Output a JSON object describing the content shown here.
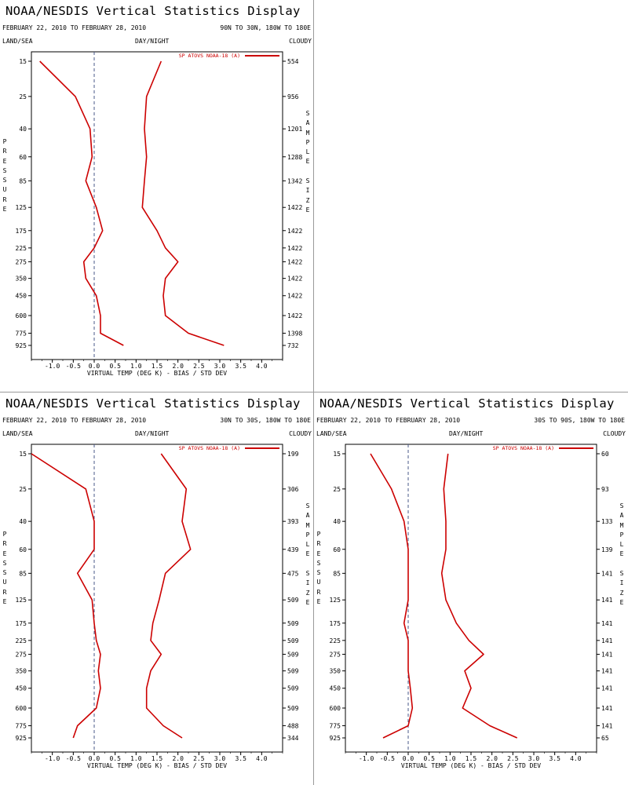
{
  "panels": [
    {
      "title": "NOAA/NESDIS Vertical Statistics Display",
      "dates": "FEBRUARY 22, 2010 TO FEBRUARY 28, 2010",
      "region": "90N TO 30N, 180W TO 180E",
      "land_sea": "LAND/SEA",
      "day_night": "DAY/NIGHT",
      "cloudy": "CLOUDY"
    },
    {
      "title": "NOAA/NESDIS Vertical Statistics Display",
      "dates": "FEBRUARY 22, 2010 TO FEBRUARY 28, 2010",
      "region": "30N TO 30S, 180W TO 180E",
      "land_sea": "LAND/SEA",
      "day_night": "DAY/NIGHT",
      "cloudy": "CLOUDY"
    },
    {
      "title": "NOAA/NESDIS Vertical Statistics Display",
      "dates": "FEBRUARY 22, 2010 TO FEBRUARY 28, 2010",
      "region": "30S TO 90S, 180W TO 180E",
      "land_sea": "LAND/SEA",
      "day_night": "DAY/NIGHT",
      "cloudy": "CLOUDY"
    }
  ],
  "chart_data": [
    {
      "type": "line",
      "region": "90N TO 30N, 180W TO 180E",
      "xlabel": "VIRTUAL TEMP (DEG K) - BIAS / STD DEV",
      "ylabel": "PRESSURE",
      "y2label": "SAMPLE SIZE",
      "legend": "SP ATOVS NOAA-18 (A)",
      "xlim": [
        -1.5,
        4.5
      ],
      "xticks": [
        "-1.0",
        "-0.5",
        "0.0",
        "0.5",
        "1.0",
        "1.5",
        "2.0",
        "2.5",
        "3.0",
        "3.5",
        "4.0"
      ],
      "pressure": [
        "15",
        "25",
        "40",
        "60",
        "85",
        "125",
        "175",
        "225",
        "275",
        "350",
        "450",
        "600",
        "775",
        "925"
      ],
      "sample_size": [
        "554",
        "956",
        "1201",
        "1288",
        "1342",
        "1422",
        "1422",
        "1422",
        "1422",
        "1422",
        "1422",
        "1422",
        "1398",
        "732"
      ],
      "series": [
        {
          "name": "BIAS",
          "values": [
            -1.3,
            -0.45,
            -0.1,
            -0.05,
            -0.2,
            0.05,
            0.2,
            0.0,
            -0.25,
            -0.2,
            0.05,
            0.15,
            0.15,
            0.7
          ]
        },
        {
          "name": "STD DEV",
          "values": [
            1.6,
            1.25,
            1.2,
            1.25,
            1.2,
            1.15,
            1.5,
            1.7,
            2.0,
            1.7,
            1.65,
            1.7,
            2.25,
            3.1
          ]
        }
      ]
    },
    {
      "type": "line",
      "region": "30N TO 30S, 180W TO 180E",
      "xlabel": "VIRTUAL TEMP (DEG K) - BIAS / STD DEV",
      "ylabel": "PRESSURE",
      "y2label": "SAMPLE SIZE",
      "legend": "SP ATOVS NOAA-18 (A)",
      "xlim": [
        -1.5,
        4.5
      ],
      "xticks": [
        "-1.0",
        "-0.5",
        "0.0",
        "0.5",
        "1.0",
        "1.5",
        "2.0",
        "2.5",
        "3.0",
        "3.5",
        "4.0"
      ],
      "pressure": [
        "15",
        "25",
        "40",
        "60",
        "85",
        "125",
        "175",
        "225",
        "275",
        "350",
        "450",
        "600",
        "775",
        "925"
      ],
      "sample_size": [
        "199",
        "306",
        "393",
        "439",
        "475",
        "509",
        "509",
        "509",
        "509",
        "509",
        "509",
        "509",
        "488",
        "344"
      ],
      "series": [
        {
          "name": "BIAS",
          "values": [
            -1.5,
            -0.2,
            0.0,
            0.0,
            -0.4,
            -0.05,
            0.0,
            0.05,
            0.15,
            0.1,
            0.15,
            0.05,
            -0.4,
            -0.5
          ]
        },
        {
          "name": "STD DEV",
          "values": [
            1.6,
            2.2,
            2.1,
            2.3,
            1.7,
            1.55,
            1.4,
            1.35,
            1.6,
            1.35,
            1.25,
            1.25,
            1.65,
            2.1
          ]
        }
      ]
    },
    {
      "type": "line",
      "region": "30S TO 90S, 180W TO 180E",
      "xlabel": "VIRTUAL TEMP (DEG K) - BIAS / STD DEV",
      "ylabel": "PRESSURE",
      "y2label": "SAMPLE SIZE",
      "legend": "SP ATOVS NOAA-18 (A)",
      "xlim": [
        -1.5,
        4.5
      ],
      "xticks": [
        "-1.0",
        "-0.5",
        "0.0",
        "0.5",
        "1.0",
        "1.5",
        "2.0",
        "2.5",
        "3.0",
        "3.5",
        "4.0"
      ],
      "pressure": [
        "15",
        "25",
        "40",
        "60",
        "85",
        "125",
        "175",
        "225",
        "275",
        "350",
        "450",
        "600",
        "775",
        "925"
      ],
      "sample_size": [
        "60",
        "93",
        "133",
        "139",
        "141",
        "141",
        "141",
        "141",
        "141",
        "141",
        "141",
        "141",
        "141",
        "65"
      ],
      "series": [
        {
          "name": "BIAS",
          "values": [
            -0.9,
            -0.4,
            -0.1,
            0.0,
            0.0,
            0.0,
            -0.1,
            0.0,
            0.0,
            0.0,
            0.05,
            0.1,
            0.0,
            -0.6
          ]
        },
        {
          "name": "STD DEV",
          "values": [
            0.95,
            0.85,
            0.9,
            0.9,
            0.8,
            0.9,
            1.15,
            1.45,
            1.8,
            1.35,
            1.5,
            1.3,
            1.95,
            2.6
          ]
        }
      ]
    }
  ],
  "colors": {
    "series": "#cc0000",
    "zero_line": "#4a5a8a",
    "separator": "#9a9a9a"
  }
}
